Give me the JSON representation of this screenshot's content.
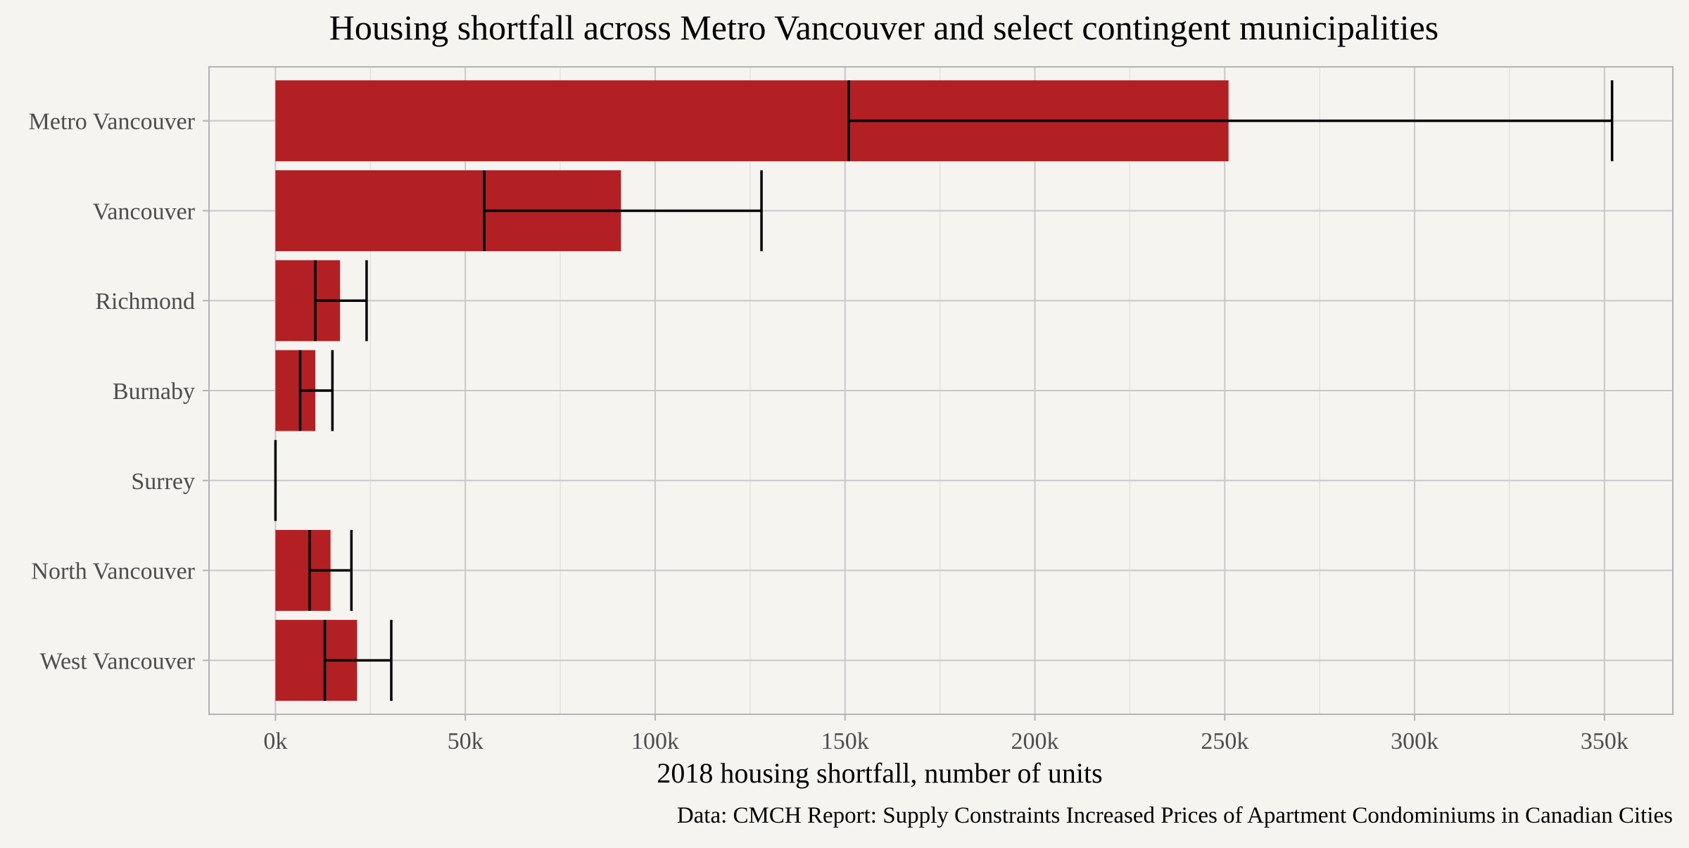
{
  "colors": {
    "background": "#f6f4f0",
    "bar": "#b22024",
    "error_bar": "#000000",
    "grid_major": "#c8c8c8",
    "grid_minor": "#e4e2de",
    "text": "#4d4d4d",
    "title": "#000000"
  },
  "chart_data": {
    "type": "bar",
    "orientation": "horizontal",
    "title": "Housing shortfall across Metro Vancouver and select contingent municipalities",
    "xlabel": "2018 housing shortfall, number of units",
    "ylabel": "",
    "caption": "Data: CMCH Report: Supply Constraints Increased Prices of Apartment Condominiums in Canadian Cities",
    "xlim": [
      -17500,
      368000
    ],
    "x_ticks": [
      0,
      50000,
      100000,
      150000,
      200000,
      250000,
      300000,
      350000
    ],
    "x_tick_labels": [
      "0k",
      "50k",
      "100k",
      "150k",
      "200k",
      "250k",
      "300k",
      "350k"
    ],
    "grid": true,
    "legend": "none",
    "categories": [
      "Metro Vancouver",
      "Vancouver",
      "Richmond",
      "Burnaby",
      "Surrey",
      "North Vancouver",
      "West Vancouver"
    ],
    "values": [
      251000,
      91000,
      17000,
      10500,
      0,
      14500,
      21500
    ],
    "error_low": [
      151000,
      55000,
      10500,
      6500,
      0,
      9000,
      13000
    ],
    "error_high": [
      352000,
      128000,
      24000,
      15000,
      0,
      20000,
      30500
    ]
  }
}
